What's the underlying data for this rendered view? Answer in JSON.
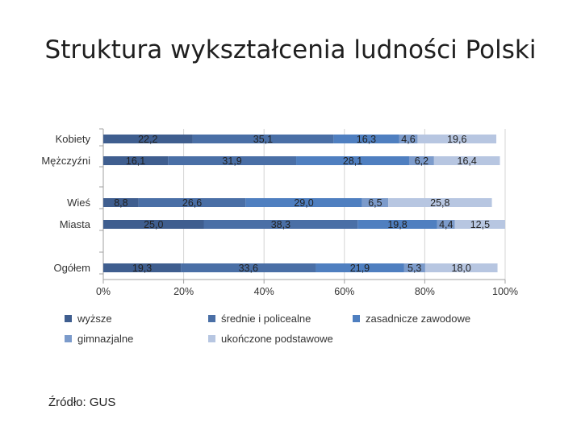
{
  "title": "Struktura wykształcenia ludności Polski",
  "source": "Źródło: GUS",
  "colors": {
    "wyzsze": "#3f5e8f",
    "srednie": "#4a6fa6",
    "zasadnicze": "#4f7fc0",
    "gimnazjalne": "#7c9bcb",
    "podstawowe": "#b7c6e1"
  },
  "chart_data": {
    "type": "bar",
    "orientation": "horizontal",
    "stacked": "percent",
    "categories": [
      "Kobiety",
      "Mężczyźni",
      "Wieś",
      "Miasta",
      "Ogółem"
    ],
    "series": [
      {
        "name": "wyższe",
        "values": [
          22.2,
          16.1,
          8.8,
          25.0,
          19.3
        ]
      },
      {
        "name": "średnie i policealne",
        "values": [
          35.1,
          31.9,
          26.6,
          38.3,
          33.6
        ]
      },
      {
        "name": "zasadnicze zawodowe",
        "values": [
          16.3,
          28.1,
          29.0,
          19.8,
          21.9
        ]
      },
      {
        "name": "gimnazjalne",
        "values": [
          4.6,
          6.2,
          6.5,
          4.4,
          5.3
        ]
      },
      {
        "name": "ukończone podstawowe",
        "values": [
          19.6,
          16.4,
          25.8,
          12.5,
          18.0
        ]
      }
    ],
    "value_labels": [
      [
        "22,2",
        "35,1",
        "16,3",
        "4,6",
        "19,6"
      ],
      [
        "16,1",
        "31,9",
        "28,1",
        "6,2",
        "16,4"
      ],
      [
        "8,8",
        "26,6",
        "29,0",
        "6,5",
        "25,8"
      ],
      [
        "25,0",
        "38,3",
        "19,8",
        "4,4",
        "12,5"
      ],
      [
        "19,3",
        "33,6",
        "21,9",
        "5,3",
        "18,0"
      ]
    ],
    "xticks": [
      "0%",
      "20%",
      "40%",
      "60%",
      "80%",
      "100%"
    ],
    "xlim": [
      0,
      100
    ],
    "grid": true,
    "legend_position": "bottom"
  }
}
